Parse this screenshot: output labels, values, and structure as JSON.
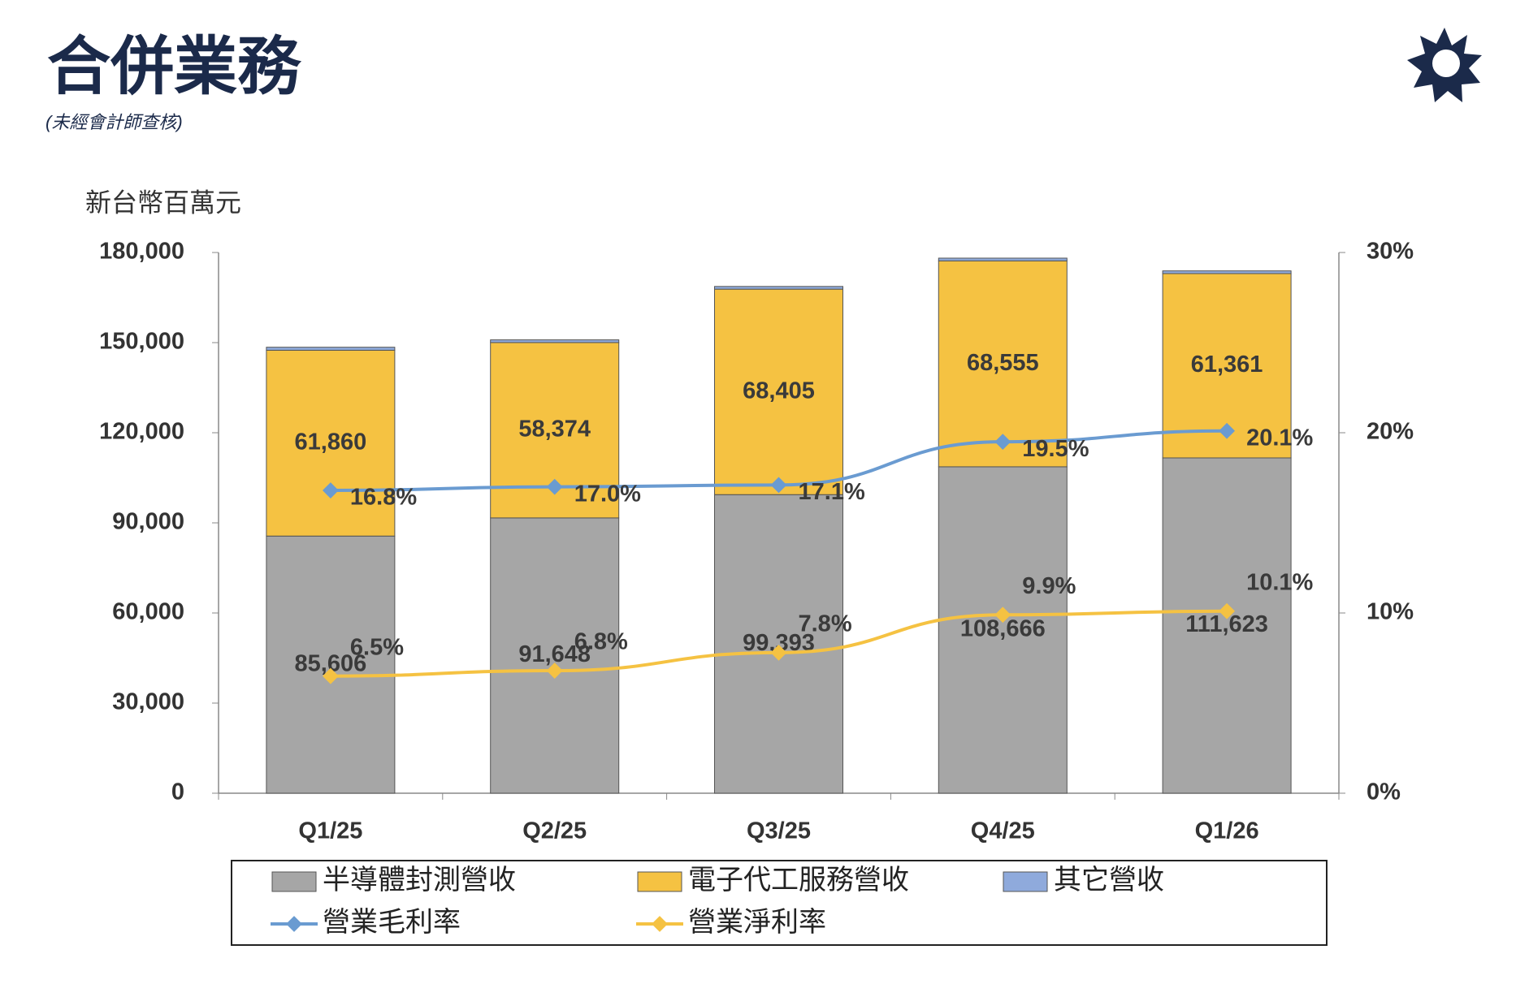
{
  "chart_data": {
    "type": "bar",
    "title": "合併業務",
    "subtitle": "(未經會計師查核)",
    "ylabel": "新台幣百萬元",
    "categories": [
      "Q1/25",
      "Q2/25",
      "Q3/25",
      "Q4/25",
      "Q1/26"
    ],
    "stacked": true,
    "series": [
      {
        "name": "半導體封測營收",
        "type": "bar",
        "color": "#a6a6a6",
        "values": [
          85606,
          91648,
          99393,
          108666,
          111623
        ],
        "value_labels": [
          "85,606",
          "91,648",
          "99,393",
          "108,666",
          "111,623"
        ]
      },
      {
        "name": "電子代工服務營收",
        "type": "bar",
        "color": "#f5c242",
        "values": [
          61860,
          58374,
          68405,
          68555,
          61361
        ],
        "value_labels": [
          "61,860",
          "58,374",
          "68,405",
          "68,555",
          "61,361"
        ]
      },
      {
        "name": "其它營收",
        "type": "bar",
        "color": "#8faadc",
        "values": [
          1000,
          900,
          900,
          900,
          900
        ]
      },
      {
        "name": "營業毛利率",
        "type": "line",
        "axis": "y2",
        "color": "#6a9bd1",
        "values": [
          16.8,
          17.0,
          17.1,
          19.5,
          20.1
        ],
        "value_labels": [
          "16.8%",
          "17.0%",
          "17.1%",
          "19.5%",
          "20.1%"
        ]
      },
      {
        "name": "營業淨利率",
        "type": "line",
        "axis": "y2",
        "color": "#f5c242",
        "values": [
          6.5,
          6.8,
          7.8,
          9.9,
          10.1
        ],
        "value_labels": [
          "6.5%",
          "6.8%",
          "7.8%",
          "9.9%",
          "10.1%"
        ]
      }
    ],
    "ylim": [
      0,
      180000
    ],
    "yticks": [
      0,
      {
        "value": 30000,
        "label": "30,000"
      },
      {
        "value": 60000,
        "label": "60,000"
      },
      {
        "value": 90000,
        "label": "90,000"
      },
      {
        "value": 120000,
        "label": "120,000"
      },
      {
        "value": 150000,
        "label": "150,000"
      },
      {
        "value": 180000,
        "label": "180,000"
      }
    ],
    "y2lim": [
      0,
      30
    ],
    "y2ticks": [
      {
        "value": 0,
        "label": "0%"
      },
      {
        "value": 10,
        "label": "10%"
      },
      {
        "value": 20,
        "label": "20%"
      },
      {
        "value": 30,
        "label": "30%"
      }
    ],
    "grid": false
  }
}
